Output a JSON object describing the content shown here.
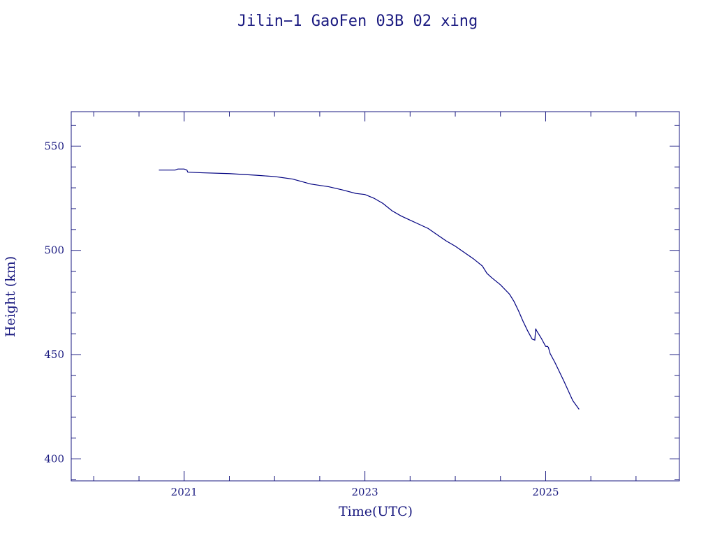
{
  "chart_data": {
    "type": "line",
    "title": "Jilin−1 GaoFen 03B 02 xing",
    "xlabel": "Time(UTC)",
    "ylabel": "Height (km)",
    "xlim": [
      2019.75,
      2026.48
    ],
    "ylim": [
      389.5,
      566.5
    ],
    "x_ticks": [
      2021,
      2023,
      2025
    ],
    "x_tick_labels": [
      "2021",
      "2023",
      "2025"
    ],
    "x_minor_step": 0.5,
    "y_ticks": [
      400,
      450,
      500,
      550
    ],
    "y_tick_labels": [
      "400",
      "450",
      "500",
      "550"
    ],
    "y_minor_step": 10,
    "grid": false,
    "series": [
      {
        "color": "#000080",
        "x": [
          2020.72,
          2020.9,
          2020.93,
          2021.0,
          2021.03,
          2021.04,
          2021.2,
          2021.5,
          2021.8,
          2022.0,
          2022.2,
          2022.4,
          2022.6,
          2022.75,
          2022.9,
          2023.0,
          2023.1,
          2023.2,
          2023.3,
          2023.4,
          2023.5,
          2023.6,
          2023.7,
          2023.8,
          2023.9,
          2024.0,
          2024.1,
          2024.2,
          2024.3,
          2024.35,
          2024.4,
          2024.5,
          2024.6,
          2024.65,
          2024.7,
          2024.75,
          2024.8,
          2024.85,
          2024.88,
          2024.89,
          2024.9,
          2024.95,
          2025.0,
          2025.02,
          2025.03,
          2025.05,
          2025.1,
          2025.2,
          2025.3,
          2025.37
        ],
        "values": [
          538.5,
          538.5,
          539.0,
          539.0,
          538.5,
          537.5,
          537.2,
          536.8,
          536.0,
          535.4,
          534.2,
          531.8,
          530.5,
          529.0,
          527.3,
          526.8,
          525.0,
          522.5,
          519.0,
          516.5,
          514.5,
          512.5,
          510.5,
          507.5,
          504.5,
          502.0,
          499.0,
          496.0,
          492.5,
          489.0,
          487.0,
          483.5,
          479.0,
          475.5,
          471.0,
          466.0,
          461.5,
          457.5,
          457.0,
          462.5,
          461.5,
          458.0,
          454.0,
          454.0,
          453.5,
          450.5,
          446.5,
          437.5,
          428.0,
          423.8
        ]
      }
    ]
  }
}
